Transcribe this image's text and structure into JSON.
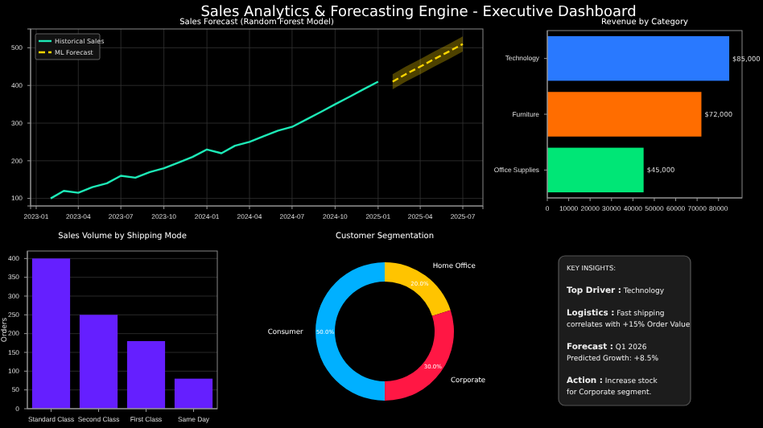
{
  "chart_data": [
    {
      "type": "other",
      "title": "Sales Analytics & Forecasting Engine - Executive Dashboard"
    },
    {
      "type": "line",
      "title": "Sales Forecast (Random Forest Model)",
      "legend": "top left",
      "grid": true,
      "xlim": [
        "2022-12-20",
        "2025-08-13"
      ],
      "ylim": [
        80,
        550
      ],
      "xticks": [
        {
          "value": "2023-01",
          "label": "2023-01"
        },
        {
          "value": "2023-04",
          "label": "2023-04"
        },
        {
          "value": "2023-07",
          "label": "2023-07"
        },
        {
          "value": "2023-10",
          "label": "2023-10"
        },
        {
          "value": "2024-01",
          "label": "2024-01"
        },
        {
          "value": "2024-04",
          "label": "2024-04"
        },
        {
          "value": "2024-07",
          "label": "2024-07"
        },
        {
          "value": "2024-10",
          "label": "2024-10"
        },
        {
          "value": "2025-01",
          "label": "2025-01"
        },
        {
          "value": "2025-04",
          "label": "2025-04"
        },
        {
          "value": "2025-07",
          "label": "2025-07"
        }
      ],
      "yticks": [
        100,
        200,
        300,
        400,
        500
      ],
      "series": [
        {
          "name": "Historical Sales",
          "color": "#1de9b6",
          "line_style": "solid",
          "x": [
            "2023-02",
            "2023-03",
            "2023-04",
            "2023-05",
            "2023-06",
            "2023-07",
            "2023-08",
            "2023-09",
            "2023-10",
            "2023-11",
            "2023-12",
            "2024-01",
            "2024-02",
            "2024-03",
            "2024-04",
            "2024-05",
            "2024-06",
            "2024-07",
            "2024-08",
            "2024-09",
            "2024-10",
            "2024-11",
            "2024-12",
            "2025-01"
          ],
          "values": [
            100,
            120,
            115,
            130,
            140,
            160,
            155,
            170,
            180,
            195,
            210,
            230,
            220,
            240,
            250,
            265,
            280,
            290,
            310,
            330,
            350,
            370,
            390,
            410
          ]
        },
        {
          "name": "ML Forecast",
          "color": "#ffd600",
          "line_style": "dashed",
          "x": [
            "2025-02",
            "2025-03",
            "2025-04",
            "2025-05",
            "2025-06",
            "2025-07"
          ],
          "values": [
            410,
            430,
            450,
            470,
            490,
            510
          ],
          "lower": [
            390,
            410,
            430,
            450,
            470,
            490
          ],
          "upper": [
            430,
            450,
            470,
            490,
            510,
            530
          ]
        }
      ]
    },
    {
      "type": "bar",
      "orientation": "horizontal",
      "title": "Revenue by Category",
      "categories": [
        "Technology",
        "Furniture",
        "Office Supplies"
      ],
      "values": [
        85000,
        72000,
        45000
      ],
      "colors": [
        "#2979ff",
        "#ff6d00",
        "#00e676"
      ],
      "value_labels": [
        "$85,000",
        "$72,000",
        "$45,000"
      ],
      "xlim": [
        0,
        91000
      ],
      "xticks": [
        0,
        10000,
        20000,
        30000,
        40000,
        50000,
        60000,
        70000,
        80000
      ]
    },
    {
      "type": "bar",
      "title": "Sales Volume by Shipping Mode",
      "ylabel": "Orders",
      "categories": [
        "Standard Class",
        "Second Class",
        "First Class",
        "Same Day"
      ],
      "values": [
        400,
        250,
        180,
        80
      ],
      "color": "#651fff",
      "ylim": [
        0,
        420
      ],
      "yticks": [
        0,
        50,
        100,
        150,
        200,
        250,
        300,
        350,
        400
      ],
      "grid": "y"
    },
    {
      "type": "donut",
      "title": "Customer Segmentation",
      "categories": [
        "Home Office",
        "Corporate",
        "Consumer"
      ],
      "values": [
        20,
        30,
        50
      ],
      "colors": [
        "#ffc400",
        "#ff1744",
        "#00b0ff"
      ],
      "value_labels": [
        "20.0%",
        "30.0%",
        "50.0%"
      ]
    },
    {
      "type": "other",
      "annotations": [
        "KEY INSIGHTS:",
        "Top Driver : Technology",
        "Logistics : Fast shipping\ncorrelates with +15% Order Value",
        "Forecast : Q1 2026\nPredicted Growth: +8.5%",
        "Action : Increase stock\nfor Corporate segment."
      ]
    }
  ]
}
